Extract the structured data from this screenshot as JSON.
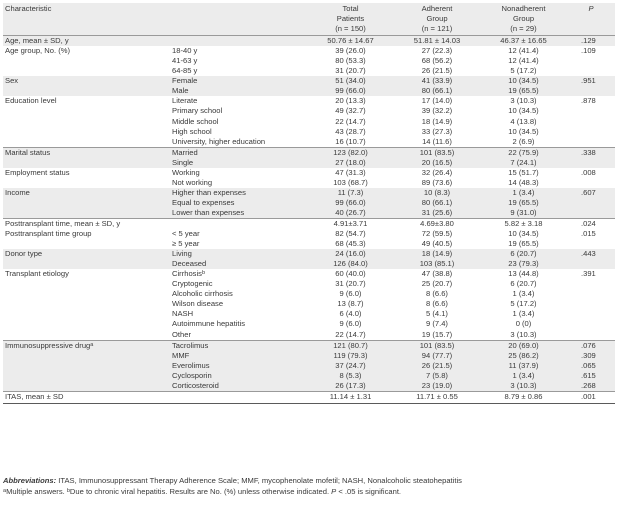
{
  "headers": {
    "characteristic": "Characteristic",
    "total_line1": "Total",
    "total_line2": "Patients",
    "total_n": "(n = 150)",
    "adherent_line1": "Adherent",
    "adherent_line2": "Group",
    "adherent_n": "(n = 121)",
    "nonadherent_line1": "Nonadherent",
    "nonadherent_line2": "Group",
    "nonadherent_n": "(n = 29)",
    "p": "P"
  },
  "rows": [
    {
      "c1": "Age, mean ± SD, y",
      "c2": "",
      "total": "50.76 ± 14.67",
      "adherent": "51.81 ± 14.03",
      "nonadherent": "46.37 ± 16.65",
      "p": ".129",
      "g": 1,
      "sep": 0
    },
    {
      "c1": "Age group, No. (%)",
      "c2": "18-40 y",
      "total": "39 (26.0)",
      "adherent": "27 (22.3)",
      "nonadherent": "12 (41.4)",
      "p": ".109",
      "g": 0,
      "sep": 0
    },
    {
      "c1": "",
      "c2": "41-63 y",
      "total": "80 (53.3)",
      "adherent": "68 (56.2)",
      "nonadherent": "12 (41.4)",
      "p": "",
      "g": 0,
      "sep": 0
    },
    {
      "c1": "",
      "c2": "64-85 y",
      "total": "31 (20.7)",
      "adherent": "26 (21.5)",
      "nonadherent": "5 (17.2)",
      "p": "",
      "g": 0,
      "sep": 0
    },
    {
      "c1": "Sex",
      "c2": "Female",
      "total": "51 (34.0)",
      "adherent": "41 (33.9)",
      "nonadherent": "10 (34.5)",
      "p": ".951",
      "g": 1,
      "sep": 0
    },
    {
      "c1": "",
      "c2": "Male",
      "total": "99 (66.0)",
      "adherent": "80 (66.1)",
      "nonadherent": "19 (65.5)",
      "p": "",
      "g": 1,
      "sep": 0
    },
    {
      "c1": "Education level",
      "c2": "Literate",
      "total": "20 (13.3)",
      "adherent": "17 (14.0)",
      "nonadherent": "3 (10.3)",
      "p": ".878",
      "g": 0,
      "sep": 0
    },
    {
      "c1": "",
      "c2": "Primary school",
      "total": "49 (32.7)",
      "adherent": "39 (32.2)",
      "nonadherent": "10 (34.5)",
      "p": "",
      "g": 0,
      "sep": 0
    },
    {
      "c1": "",
      "c2": "Middle school",
      "total": "22 (14.7)",
      "adherent": "18 (14.9)",
      "nonadherent": "4 (13.8)",
      "p": "",
      "g": 0,
      "sep": 0
    },
    {
      "c1": "",
      "c2": "High school",
      "total": "43 (28.7)",
      "adherent": "33 (27.3)",
      "nonadherent": "10 (34.5)",
      "p": "",
      "g": 0,
      "sep": 0
    },
    {
      "c1": "",
      "c2": "University, higher education",
      "total": "16 (10.7)",
      "adherent": "14 (11.6)",
      "nonadherent": "2 (6.9)",
      "p": "",
      "g": 0,
      "sep": 0
    },
    {
      "c1": "Marital status",
      "c2": "Married",
      "total": "123 (82.0)",
      "adherent": "101 (83.5)",
      "nonadherent": "22 (75.9)",
      "p": ".338",
      "g": 1,
      "sep": 1
    },
    {
      "c1": "",
      "c2": "Single",
      "total": "27 (18.0)",
      "adherent": "20 (16.5)",
      "nonadherent": "7 (24.1)",
      "p": "",
      "g": 1,
      "sep": 0
    },
    {
      "c1": "Employment status",
      "c2": "Working",
      "total": "47 (31.3)",
      "adherent": "32 (26.4)",
      "nonadherent": "15 (51.7)",
      "p": ".008",
      "g": 0,
      "sep": 0
    },
    {
      "c1": "",
      "c2": "Not working",
      "total": "103 (68.7)",
      "adherent": "89 (73.6)",
      "nonadherent": "14 (48.3)",
      "p": "",
      "g": 0,
      "sep": 0
    },
    {
      "c1": "Income",
      "c2": "Higher than expenses",
      "total": "11 (7.3)",
      "adherent": "10 (8.3)",
      "nonadherent": "1 (3.4)",
      "p": ".607",
      "g": 1,
      "sep": 0
    },
    {
      "c1": "",
      "c2": "Equal to expenses",
      "total": "99 (66.0)",
      "adherent": "80 (66.1)",
      "nonadherent": "19 (65.5)",
      "p": "",
      "g": 1,
      "sep": 0
    },
    {
      "c1": "",
      "c2": "Lower than expenses",
      "total": "40 (26.7)",
      "adherent": "31 (25.6)",
      "nonadherent": "9 (31.0)",
      "p": "",
      "g": 1,
      "sep": 0
    },
    {
      "c1": "Posttransplant time, mean ± SD, y",
      "c2": "",
      "total": "4.91±3.71",
      "adherent": "4.69±3.80",
      "nonadherent": "5.82 ± 3.18",
      "p": ".024",
      "g": 0,
      "sep": 1
    },
    {
      "c1": "Posttransplant time group",
      "c2": "< 5 year",
      "total": "82 (54.7)",
      "adherent": "72 (59.5)",
      "nonadherent": "10 (34.5)",
      "p": ".015",
      "g": 0,
      "sep": 0
    },
    {
      "c1": "",
      "c2": "≥ 5 year",
      "total": "68 (45.3)",
      "adherent": "49 (40.5)",
      "nonadherent": "19 (65.5)",
      "p": "",
      "g": 0,
      "sep": 0
    },
    {
      "c1": "Donor type",
      "c2": "Living",
      "total": "24 (16.0)",
      "adherent": "18 (14.9)",
      "nonadherent": "6 (20.7)",
      "p": ".443",
      "g": 1,
      "sep": 0
    },
    {
      "c1": "",
      "c2": "Deceased",
      "total": "126 (84.0)",
      "adherent": "103 (85.1)",
      "nonadherent": "23 (79.3)",
      "p": "",
      "g": 1,
      "sep": 0
    },
    {
      "c1": "Transplant etiology",
      "c2": "Cirrhosis",
      "c2sup": "b",
      "total": "60 (40.0)",
      "adherent": "47 (38.8)",
      "nonadherent": "13 (44.8)",
      "p": ".391",
      "g": 0,
      "sep": 0
    },
    {
      "c1": "",
      "c2": "Cryptogenic",
      "total": "31 (20.7)",
      "adherent": "25 (20.7)",
      "nonadherent": "6 (20.7)",
      "p": "",
      "g": 0,
      "sep": 0
    },
    {
      "c1": "",
      "c2": "Alcoholic cirrhosis",
      "total": "9 (6.0)",
      "adherent": "8 (6.6)",
      "nonadherent": "1 (3.4)",
      "p": "",
      "g": 0,
      "sep": 0
    },
    {
      "c1": "",
      "c2": "Wilson disease",
      "total": "13 (8.7)",
      "adherent": "8 (6.6)",
      "nonadherent": "5 (17.2)",
      "p": "",
      "g": 0,
      "sep": 0
    },
    {
      "c1": "",
      "c2": "NASH",
      "total": "6 (4.0)",
      "adherent": "5 (4.1)",
      "nonadherent": "1 (3.4)",
      "p": "",
      "g": 0,
      "sep": 0
    },
    {
      "c1": "",
      "c2": "Autoimmune hepatitis",
      "total": "9 (6.0)",
      "adherent": "9 (7.4)",
      "nonadherent": "0 (0)",
      "p": "",
      "g": 0,
      "sep": 0
    },
    {
      "c1": "",
      "c2": "Other",
      "total": "22 (14.7)",
      "adherent": "19 (15.7)",
      "nonadherent": "3 (10.3)",
      "p": "",
      "g": 0,
      "sep": 0
    },
    {
      "c1": "Immunosuppressive drug",
      "c1sup": "a",
      "c2": "Tacrolimus",
      "total": "121 (80.7)",
      "adherent": "101 (83.5)",
      "nonadherent": "20 (69.0)",
      "p": ".076",
      "g": 1,
      "sep": 1
    },
    {
      "c1": "",
      "c2": "MMF",
      "total": "119 (79.3)",
      "adherent": "94 (77.7)",
      "nonadherent": "25 (86.2)",
      "p": ".309",
      "g": 1,
      "sep": 0
    },
    {
      "c1": "",
      "c2": "Everolimus",
      "total": "37 (24.7)",
      "adherent": "26 (21.5)",
      "nonadherent": "11 (37.9)",
      "p": ".065",
      "g": 1,
      "sep": 0
    },
    {
      "c1": "",
      "c2": "Cyclosporin",
      "total": "8 (5.3)",
      "adherent": "7 (5.8)",
      "nonadherent": "1 (3.4)",
      "p": ".615",
      "g": 1,
      "sep": 0
    },
    {
      "c1": "",
      "c2": "Corticosteroid",
      "total": "26 (17.3)",
      "adherent": "23 (19.0)",
      "nonadherent": "3 (10.3)",
      "p": ".268",
      "g": 1,
      "sep": 0
    },
    {
      "c1": "ITAS, mean ± SD",
      "c2": "",
      "total": "11.14 ± 1.31",
      "adherent": "11.71 ± 0.55",
      "nonadherent": "8.79 ± 0.86",
      "p": ".001",
      "g": 0,
      "sep": 1
    }
  ],
  "footnote": {
    "abbr_label": "Abbreviations:",
    "abbr_text": " ITAS, Immunosuppressant Therapy Adherence Scale; MMF, mycophenolate mofetil; NASH, Nonalcoholic steatohepatitis",
    "a_mark": "a",
    "a_text": "Multiple answers. ",
    "b_mark": "b",
    "b_text": "Due to chronic viral hepatitis. Results are No. (%) unless otherwise indicated. ",
    "p_italic": "P",
    "p_text": " < .05 is significant."
  }
}
